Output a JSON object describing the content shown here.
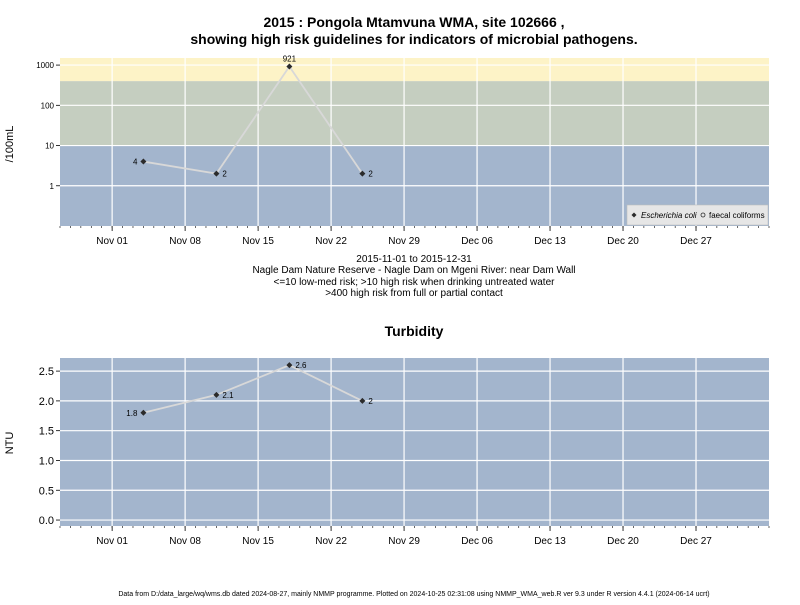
{
  "top": {
    "title_line1": "2015 : Pongola Mtamvuna WMA, site 102666 ,",
    "title_line2": "showing high risk guidelines for indicators of microbial pathogens.",
    "subtitle_lines": [
      "2015-11-01 to 2015-12-31",
      "Nagle Dam Nature Reserve - Nagle Dam on Mgeni River: near Dam Wall",
      "<=10 low-med risk; >10 high risk when drinking untreated water",
      ">400 high risk from full or partial contact"
    ]
  },
  "bottom": {
    "title": "Turbidity"
  },
  "footer": "Data from D:/data_large/wq/wms.db dated 2024-08-27, mainly NMMP programme. Plotted on 2024-10-25 02:31:08 using NMMP_WMA_web.R ver 9.3 under R version 4.4.1 (2024-06-14 ucrt)",
  "colors": {
    "band_low": "#a3b5cd",
    "band_mid": "#c5cec0",
    "band_high": "#fdf3c7",
    "plot_bg": "#a3b5cd",
    "grid": "#ffffff",
    "line": "#d8d8d8",
    "marker": "#2b2b2b"
  },
  "chart_data": [
    {
      "type": "line",
      "ylabel": "/100mL",
      "yscale": "log10",
      "ylim": [
        0.1,
        1500
      ],
      "x_domain": [
        "2015-10-27",
        "2016-01-03"
      ],
      "x_ticks": [
        {
          "date": "2015-11-01",
          "label": "Nov 01"
        },
        {
          "date": "2015-11-08",
          "label": "Nov 08"
        },
        {
          "date": "2015-11-15",
          "label": "Nov 15"
        },
        {
          "date": "2015-11-22",
          "label": "Nov 22"
        },
        {
          "date": "2015-11-29",
          "label": "Nov 29"
        },
        {
          "date": "2015-12-06",
          "label": "Dec 06"
        },
        {
          "date": "2015-12-13",
          "label": "Dec 13"
        },
        {
          "date": "2015-12-20",
          "label": "Dec 20"
        },
        {
          "date": "2015-12-27",
          "label": "Dec 27"
        }
      ],
      "y_ticks": [
        {
          "value": 1,
          "label": "1"
        },
        {
          "value": 10,
          "label": "10"
        },
        {
          "value": 100,
          "label": "100"
        },
        {
          "value": 1000,
          "label": "1000"
        }
      ],
      "bands": [
        {
          "from": 0.1,
          "to": 10,
          "color": "#a3b5cd"
        },
        {
          "from": 10,
          "to": 400,
          "color": "#c5cec0"
        },
        {
          "from": 400,
          "to": 1500,
          "color": "#fdf3c7"
        }
      ],
      "series": [
        {
          "name": "Escherichia coli",
          "points": [
            {
              "x": "2015-11-04",
              "y": 4,
              "label": "4",
              "label_side": "left"
            },
            {
              "x": "2015-11-11",
              "y": 2,
              "label": "2",
              "label_side": "right"
            },
            {
              "x": "2015-11-18",
              "y": 921,
              "label": "921",
              "label_side": "top"
            },
            {
              "x": "2015-11-25",
              "y": 2,
              "label": "2",
              "label_side": "right"
            }
          ]
        }
      ],
      "legend": {
        "position": "bottom-right",
        "entries": [
          {
            "name": "Escherichia coli",
            "marker": "filled-diamond",
            "italic": true
          },
          {
            "name": "faecal coliforms",
            "marker": "open-circle",
            "italic": false
          }
        ]
      },
      "grid": true
    },
    {
      "type": "line",
      "title": "Turbidity",
      "ylabel": "NTU",
      "ylim": [
        -0.1,
        2.72
      ],
      "x_domain": [
        "2015-10-27",
        "2016-01-03"
      ],
      "x_ticks": [
        {
          "date": "2015-11-01",
          "label": "Nov 01"
        },
        {
          "date": "2015-11-08",
          "label": "Nov 08"
        },
        {
          "date": "2015-11-15",
          "label": "Nov 15"
        },
        {
          "date": "2015-11-22",
          "label": "Nov 22"
        },
        {
          "date": "2015-11-29",
          "label": "Nov 29"
        },
        {
          "date": "2015-12-06",
          "label": "Dec 06"
        },
        {
          "date": "2015-12-13",
          "label": "Dec 13"
        },
        {
          "date": "2015-12-20",
          "label": "Dec 20"
        },
        {
          "date": "2015-12-27",
          "label": "Dec 27"
        }
      ],
      "y_ticks": [
        {
          "value": 0,
          "label": "0.0"
        },
        {
          "value": 0.5,
          "label": "0.5"
        },
        {
          "value": 1,
          "label": "1.0"
        },
        {
          "value": 1.5,
          "label": "1.5"
        },
        {
          "value": 2,
          "label": "2.0"
        },
        {
          "value": 2.5,
          "label": "2.5"
        }
      ],
      "series": [
        {
          "name": "Turbidity",
          "points": [
            {
              "x": "2015-11-04",
              "y": 1.8,
              "label": "1.8",
              "label_side": "left"
            },
            {
              "x": "2015-11-11",
              "y": 2.1,
              "label": "2.1",
              "label_side": "right"
            },
            {
              "x": "2015-11-18",
              "y": 2.6,
              "label": "2.6",
              "label_side": "right"
            },
            {
              "x": "2015-11-25",
              "y": 2,
              "label": "2",
              "label_side": "right"
            }
          ]
        }
      ],
      "grid": true
    }
  ]
}
